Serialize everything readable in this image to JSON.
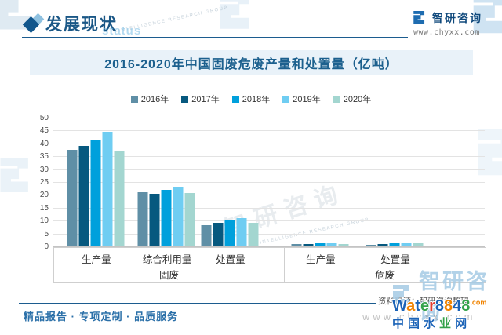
{
  "header": {
    "title": "发展现状",
    "watermark": "status",
    "brand": "智研咨询",
    "brand_url": "www.chyxx.com"
  },
  "chart_data": {
    "type": "bar",
    "title": "2016-2020年中国固废危废产量和处置量（亿吨）",
    "unit": "亿吨",
    "ylim": [
      0,
      50
    ],
    "ytick_step": 5,
    "grid": true,
    "legend_position": "top",
    "series": [
      {
        "name": "2016年",
        "color": "#5f8fa6"
      },
      {
        "name": "2017年",
        "color": "#07597f"
      },
      {
        "name": "2018年",
        "color": "#00a0dc"
      },
      {
        "name": "2019年",
        "color": "#6fcdf2"
      },
      {
        "name": "2020年",
        "color": "#a3d6d0"
      }
    ],
    "groups": [
      {
        "parent": "固废",
        "label": "生产量",
        "values": [
          37.1,
          38.8,
          40.9,
          44.3,
          36.8
        ]
      },
      {
        "parent": "固废",
        "label": "综合利用量",
        "values": [
          20.6,
          20.2,
          21.6,
          23.0,
          20.3
        ]
      },
      {
        "parent": "固废",
        "label": "处置量",
        "values": [
          8.0,
          8.9,
          10.2,
          10.7,
          8.7
        ]
      },
      {
        "parent": "危废",
        "label": "生产量",
        "values": [
          0.5,
          0.7,
          0.8,
          0.8,
          0.7
        ]
      },
      {
        "parent": "危废",
        "label": "处置量",
        "values": [
          0.4,
          0.6,
          0.8,
          0.9,
          0.8
        ]
      }
    ],
    "parents": [
      {
        "label": "固废"
      },
      {
        "label": "危废"
      }
    ]
  },
  "footer": {
    "left": "精品报告 · 专项定制 · 品质服务",
    "source": "资料来源：智研咨询整理"
  },
  "watermarks": {
    "brand_text": "智研咨询",
    "diag_text": "智研咨询",
    "url_gray": "www.chyxx.com",
    "micro_text": "INTELLIGENCE RESEARCH GROUP",
    "site_logo": {
      "word": [
        [
          "W",
          "#1b63b7"
        ],
        [
          "a",
          "#f08300"
        ],
        [
          "t",
          "#1b63b7"
        ],
        [
          "e",
          "#35a24b"
        ],
        [
          "r",
          "#e43d30"
        ],
        [
          "8",
          "#1b63b7"
        ],
        [
          "8",
          "#f08300"
        ],
        [
          "4",
          "#1b63b7"
        ],
        [
          "8",
          "#35a24b"
        ]
      ],
      "suffix": ".com",
      "suffix_color": "#f08300",
      "line2": [
        [
          "中",
          "#1b63b7"
        ],
        [
          "国",
          "#1b63b7"
        ],
        [
          "水",
          "#1b63b7"
        ],
        [
          "业",
          "#35a24b"
        ],
        [
          "网",
          "#1b63b7"
        ]
      ]
    }
  }
}
